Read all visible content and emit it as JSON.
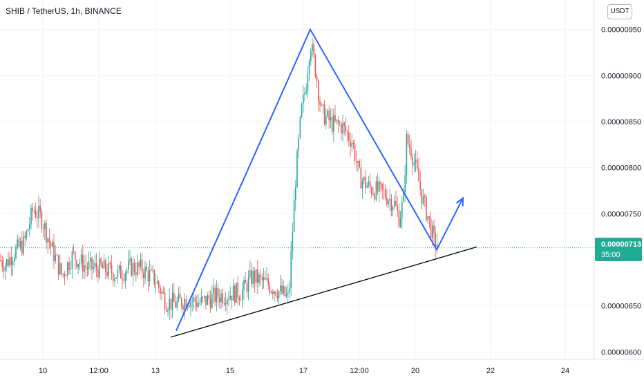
{
  "header": {
    "symbol_title": "SHIB / TetherUS, 1h, BINANCE",
    "currency_button": "USDT"
  },
  "last_price": {
    "value": "0.00000713",
    "countdown": "35:00"
  },
  "colors": {
    "up": "#26a69a",
    "down": "#ef5350",
    "drawing_blue": "#2962ff",
    "trendline": "#000000",
    "grid": "#f0f3fa",
    "price_line": "#22ab94"
  },
  "chart_data": {
    "type": "candlestick",
    "symbol": "SHIB / TetherUS",
    "interval": "1h",
    "exchange": "BINANCE",
    "ylim": [
      5.92e-06,
      9.82e-06
    ],
    "xlim": [
      0,
      860
    ],
    "y_ticks": [
      "0.00000950",
      "0.00000900",
      "0.00000850",
      "0.00000800",
      "0.00000750",
      "0.00000650",
      "0.00000600"
    ],
    "y_tick_values": [
      9.5e-06,
      9e-06,
      8.5e-06,
      8e-06,
      7.5e-06,
      6.5e-06,
      6e-06
    ],
    "x_ticks": [
      "10",
      "12:00",
      "13",
      "15",
      "17",
      "12:00",
      "20",
      "22",
      "24"
    ],
    "x_tick_positions": [
      62,
      143,
      225,
      333,
      439,
      520,
      601,
      710,
      818
    ],
    "current_price": 7.13e-06,
    "grid": true,
    "price_segments": [
      [
        0,
        7e-06
      ],
      [
        8,
        6.95e-06
      ],
      [
        20,
        7.08e-06
      ],
      [
        35,
        7.18e-06
      ],
      [
        48,
        7.55e-06
      ],
      [
        60,
        7.45e-06
      ],
      [
        75,
        7.12e-06
      ],
      [
        90,
        6.83e-06
      ],
      [
        105,
        7.05e-06
      ],
      [
        125,
        6.92e-06
      ],
      [
        150,
        6.9e-06
      ],
      [
        170,
        6.84e-06
      ],
      [
        190,
        6.92e-06
      ],
      [
        205,
        6.9e-06
      ],
      [
        225,
        6.78e-06
      ],
      [
        240,
        6.55e-06
      ],
      [
        255,
        6.52e-06
      ],
      [
        270,
        6.58e-06
      ],
      [
        290,
        6.53e-06
      ],
      [
        310,
        6.6e-06
      ],
      [
        330,
        6.63e-06
      ],
      [
        350,
        6.65e-06
      ],
      [
        365,
        6.82e-06
      ],
      [
        380,
        6.76e-06
      ],
      [
        400,
        6.68e-06
      ],
      [
        418,
        6.58e-06
      ],
      [
        422,
        7.15e-06
      ],
      [
        428,
        7.9e-06
      ],
      [
        436,
        8.6e-06
      ],
      [
        443,
        8.9e-06
      ],
      [
        449,
        9.38e-06
      ],
      [
        457,
        9.05e-06
      ],
      [
        465,
        8.6e-06
      ],
      [
        480,
        8.48e-06
      ],
      [
        495,
        8.45e-06
      ],
      [
        510,
        8.28e-06
      ],
      [
        520,
        7.9e-06
      ],
      [
        535,
        7.78e-06
      ],
      [
        555,
        7.72e-06
      ],
      [
        570,
        7.62e-06
      ],
      [
        578,
        7.45e-06
      ],
      [
        584,
        7.65e-06
      ],
      [
        588,
        8.3e-06
      ],
      [
        595,
        8.2e-06
      ],
      [
        603,
        7.95e-06
      ],
      [
        612,
        7.65e-06
      ],
      [
        620,
        7.45e-06
      ],
      [
        628,
        7.2e-06
      ],
      [
        634,
        7.18e-06
      ]
    ],
    "drawings": {
      "zigzag": [
        [
          255,
          6.23e-06
        ],
        [
          449,
          9.5e-06
        ],
        [
          632,
          7.11e-06
        ],
        [
          670,
          7.67e-06
        ]
      ],
      "trendline": [
        [
          247,
          6.16e-06
        ],
        [
          690,
          7.14e-06
        ]
      ]
    }
  }
}
